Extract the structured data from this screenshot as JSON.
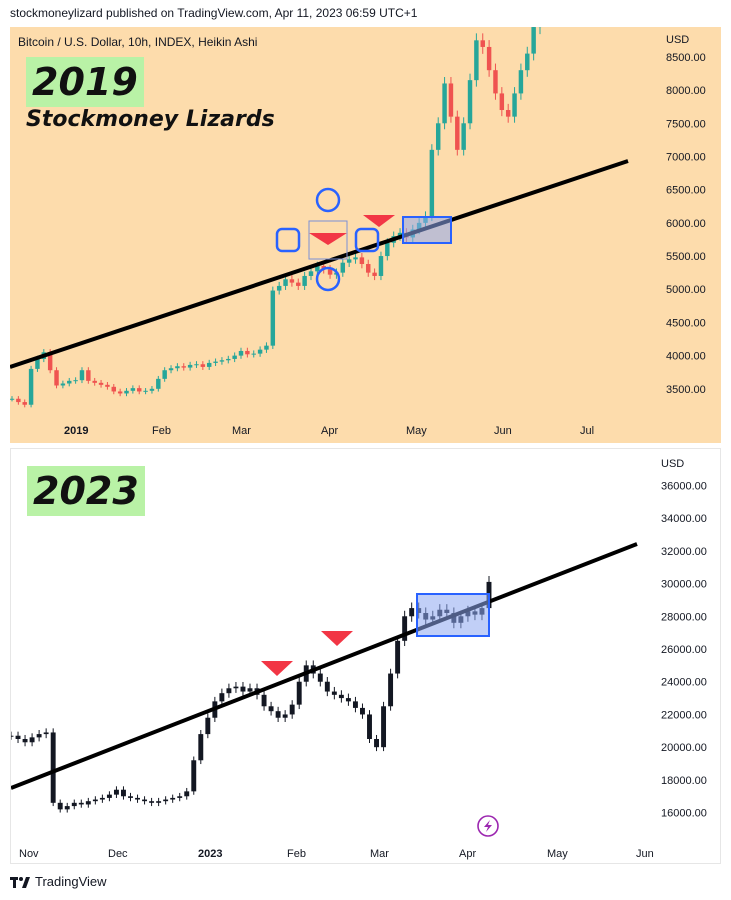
{
  "header": {
    "publisher_line": "stockmoneylizard published on TradingView.com, Apr 11, 2023 06:59 UTC+1"
  },
  "footer": {
    "brand": "TradingView"
  },
  "colors": {
    "up": "#26a69a",
    "down": "#ef5350",
    "marker_red": "#f23645",
    "circle_blue": "#2962ff",
    "box_fill": "#8ea8f0",
    "box_stroke": "#2962ff",
    "bg_2019": "#fddcac",
    "year_badge": "#b9f2a6"
  },
  "chart_data": [
    {
      "type": "line",
      "chart_style": "heikin-ashi candles",
      "symbol_title": "Bitcoin / U.S. Dollar, 10h, INDEX, Heikin Ashi",
      "overlay_title": "2019",
      "author_label": "Stockmoney Lizards",
      "currency_label": "USD",
      "y_axis": {
        "ticks": [
          3500,
          4000,
          4500,
          5000,
          5500,
          6000,
          6500,
          7000,
          7500,
          8000,
          8500
        ],
        "tick_labels": [
          "3500.00",
          "4000.00",
          "4500.00",
          "5000.00",
          "5500.00",
          "6000.00",
          "6500.00",
          "7000.00",
          "7500.00",
          "8000.00",
          "8500.00"
        ],
        "range": [
          3000,
          8800
        ]
      },
      "x_axis": {
        "tick_labels": [
          "2019",
          "Feb",
          "Mar",
          "Apr",
          "May",
          "Jun",
          "Jul"
        ]
      },
      "series": [
        {
          "values": [
            3350,
            3300,
            3260,
            3800,
            3950,
            4050,
            3780,
            3550,
            3580,
            3620,
            3630,
            3780,
            3620,
            3590,
            3560,
            3530,
            3460,
            3430,
            3470,
            3510,
            3460,
            3470,
            3500,
            3650,
            3780,
            3810,
            3840,
            3820,
            3860,
            3870,
            3830,
            3890,
            3910,
            3930,
            3950,
            4000,
            4070,
            4020,
            4030,
            4090,
            4150,
            4980,
            5050,
            5150,
            5100,
            5050,
            5200,
            5270,
            5350,
            5300,
            5220,
            5250,
            5400,
            5450,
            5480,
            5380,
            5250,
            5200,
            5500,
            5700,
            5800,
            5850,
            5780,
            5900,
            6000,
            6100,
            7100,
            7500,
            8100,
            7600,
            7100,
            7500,
            8150,
            8750,
            8650,
            8300,
            7950,
            7700,
            7600,
            7950,
            8300,
            8550,
            8950,
            9100
          ]
        }
      ],
      "trendline": {
        "from": [
          "Dec 28",
          3850
        ],
        "to": [
          "Jul 05",
          6850
        ]
      },
      "annotations": [
        {
          "type": "down-triangle",
          "at": [
            "Apr 03",
            5800
          ]
        },
        {
          "type": "down-triangle",
          "at": [
            "Apr 23",
            6000
          ]
        },
        {
          "type": "highlight-box",
          "x_range": [
            "Apr 28",
            "May 14"
          ],
          "y_range": [
            5720,
            6030
          ]
        },
        {
          "type": "circle",
          "at": [
            "Apr 04",
            6300
          ]
        },
        {
          "type": "circle",
          "at": [
            "Apr 04",
            5150
          ]
        },
        {
          "type": "rounded-square",
          "at": [
            "Mar 23",
            5730
          ]
        },
        {
          "type": "rounded-square",
          "at": [
            "Apr 20",
            5730
          ]
        },
        {
          "type": "outline-box",
          "x_range": [
            "Mar 30",
            "Apr 10"
          ],
          "y_range": [
            5450,
            6050
          ]
        }
      ]
    },
    {
      "type": "line",
      "overlay_title": "2023",
      "currency_label": "USD",
      "y_axis": {
        "ticks": [
          16000,
          18000,
          20000,
          22000,
          24000,
          26000,
          28000,
          30000,
          32000,
          34000,
          36000
        ],
        "tick_labels": [
          "16000.00",
          "18000.00",
          "20000.00",
          "22000.00",
          "24000.00",
          "26000.00",
          "28000.00",
          "30000.00",
          "32000.00",
          "34000.00",
          "36000.00"
        ],
        "range": [
          15000,
          37000
        ]
      },
      "x_axis": {
        "tick_labels": [
          "Nov",
          "Dec",
          "2023",
          "Feb",
          "Mar",
          "Apr",
          "May",
          "Jun"
        ]
      },
      "series": [
        {
          "values": [
            20700,
            20500,
            20300,
            20600,
            20800,
            20900,
            16600,
            16200,
            16400,
            16600,
            16500,
            16700,
            16800,
            16900,
            17100,
            17400,
            17000,
            16900,
            16800,
            16700,
            16600,
            16700,
            16800,
            16900,
            17000,
            17300,
            19200,
            20800,
            21800,
            22800,
            23300,
            23600,
            23700,
            23400,
            23600,
            23200,
            22500,
            22200,
            21800,
            22000,
            22600,
            24000,
            25000,
            24500,
            24000,
            23400,
            23200,
            23000,
            22800,
            22400,
            22000,
            20500,
            20000,
            22500,
            24500,
            26500,
            28000,
            28500,
            28200,
            27800,
            28000,
            28400,
            28200,
            27600,
            28000,
            28300,
            28100,
            28500,
            30100
          ]
        }
      ],
      "trendline": {
        "from": [
          "Oct 27",
          17700
        ],
        "to": [
          "Jun 01",
          32200
        ]
      },
      "annotations": [
        {
          "type": "down-triangle",
          "at": [
            "Jan 29",
            25700
          ]
        },
        {
          "type": "down-triangle",
          "at": [
            "Feb 18",
            27100
          ]
        },
        {
          "type": "highlight-box",
          "x_range": [
            "Mar 19",
            "Apr 10"
          ],
          "y_range": [
            26700,
            29300
          ]
        },
        {
          "type": "lightning-icon",
          "at": [
            "Apr 19",
            15300
          ]
        }
      ]
    }
  ]
}
